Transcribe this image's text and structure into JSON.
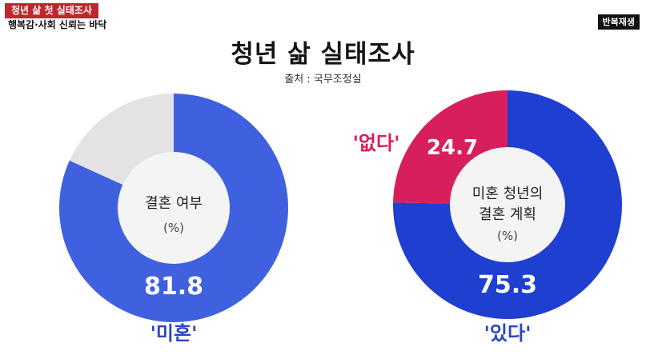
{
  "news": {
    "topic": "청년 삶 첫 실태조사",
    "subtitle": "행복감·사회 신뢰는 바닥",
    "replay": "반복재생"
  },
  "title": "청년 삶 실태조사",
  "source": "출처 : 국무조정실",
  "colors": {
    "blue_left": "#3f61e0",
    "blue_right": "#1f3fd0",
    "grey": "#e3e3e5",
    "crimson": "#d81f5d",
    "hole": "#f4f4f4",
    "label_blue": "#2a46c8",
    "label_red": "#d81f5d"
  },
  "chart_data": [
    {
      "type": "pie",
      "center_label": [
        "결혼 여부",
        "(%)"
      ],
      "slices": [
        {
          "label": "'미혼'",
          "value": 81.8,
          "value_label": "81.8"
        },
        {
          "label": "",
          "value": 18.2,
          "value_label": ""
        }
      ]
    },
    {
      "type": "pie",
      "center_label": [
        "미혼 청년의",
        "결혼 계획",
        "(%)"
      ],
      "slices": [
        {
          "label": "'있다'",
          "value": 75.3,
          "value_label": "75.3"
        },
        {
          "label": "'없다'",
          "value": 24.7,
          "value_label": "24.7"
        }
      ]
    }
  ]
}
